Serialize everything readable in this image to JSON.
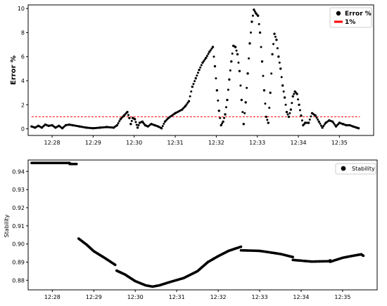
{
  "chart_data": [
    {
      "type": "scatter",
      "title": "",
      "xlabel": "",
      "ylabel": "Error %",
      "x_ticks": [
        "12:28",
        "12:29",
        "12:30",
        "12:31",
        "12:32",
        "12:33",
        "12:34",
        "12:35"
      ],
      "y_ticks": [
        "0",
        "2",
        "4",
        "6",
        "8",
        "10"
      ],
      "xlim": [
        "12:27:25",
        "12:35:50"
      ],
      "ylim": [
        -0.55,
        10.3
      ],
      "grid": false,
      "legend": "top-right",
      "colors": {
        "error": "#000000",
        "threshold": "#ff0000"
      },
      "series": [
        {
          "name": "Error %",
          "style": "dots",
          "points": [
            [
              "12:27:30",
              0.2
            ],
            [
              "12:27:35",
              0.1
            ],
            [
              "12:27:40",
              0.25
            ],
            [
              "12:27:45",
              0.1
            ],
            [
              "12:27:50",
              0.35
            ],
            [
              "12:27:55",
              0.25
            ],
            [
              "12:28:00",
              0.3
            ],
            [
              "12:28:05",
              0.1
            ],
            [
              "12:28:10",
              0.25
            ],
            [
              "12:28:15",
              0.05
            ],
            [
              "12:28:20",
              0.3
            ],
            [
              "12:28:25",
              0.35
            ],
            [
              "12:28:30",
              0.3
            ],
            [
              "12:28:40",
              0.2
            ],
            [
              "12:28:50",
              0.1
            ],
            [
              "12:29:00",
              0.05
            ],
            [
              "12:29:10",
              0.1
            ],
            [
              "12:29:20",
              0.15
            ],
            [
              "12:29:30",
              0.1
            ],
            [
              "12:29:35",
              0.3
            ],
            [
              "12:29:40",
              0.8
            ],
            [
              "12:29:45",
              1.1
            ],
            [
              "12:29:50",
              1.4
            ],
            [
              "12:29:53",
              0.9
            ],
            [
              "12:29:55",
              0.4
            ],
            [
              "12:29:58",
              0.9
            ],
            [
              "12:30:01",
              0.8
            ],
            [
              "12:30:05",
              0.1
            ],
            [
              "12:30:08",
              0.5
            ],
            [
              "12:30:12",
              0.6
            ],
            [
              "12:30:16",
              0.3
            ],
            [
              "12:30:20",
              0.2
            ],
            [
              "12:30:25",
              0.4
            ],
            [
              "12:30:30",
              0.3
            ],
            [
              "12:30:35",
              0.2
            ],
            [
              "12:30:40",
              0.05
            ],
            [
              "12:30:45",
              0.6
            ],
            [
              "12:30:50",
              0.9
            ],
            [
              "12:31:00",
              1.3
            ],
            [
              "12:31:10",
              1.6
            ],
            [
              "12:31:15",
              1.9
            ],
            [
              "12:31:20",
              2.3
            ],
            [
              "12:31:25",
              3.5
            ],
            [
              "12:31:30",
              4.2
            ],
            [
              "12:31:35",
              4.9
            ],
            [
              "12:31:40",
              5.5
            ],
            [
              "12:31:45",
              5.9
            ],
            [
              "12:31:50",
              6.4
            ],
            [
              "12:31:55",
              6.8
            ],
            [
              "12:31:58",
              5.2
            ],
            [
              "12:32:01",
              3.2
            ],
            [
              "12:32:04",
              1.5
            ],
            [
              "12:32:07",
              0.3
            ],
            [
              "12:32:10",
              0.6
            ],
            [
              "12:32:13",
              1.2
            ],
            [
              "12:32:16",
              2.4
            ],
            [
              "12:32:19",
              4.1
            ],
            [
              "12:32:22",
              5.6
            ],
            [
              "12:32:25",
              6.9
            ],
            [
              "12:32:28",
              6.8
            ],
            [
              "12:32:31",
              6.2
            ],
            [
              "12:32:34",
              4.8
            ],
            [
              "12:32:37",
              2.4
            ],
            [
              "12:32:40",
              0.4
            ],
            [
              "12:32:43",
              2.2
            ],
            [
              "12:32:46",
              4.6
            ],
            [
              "12:32:49",
              7.1
            ],
            [
              "12:32:52",
              8.9
            ],
            [
              "12:32:55",
              9.9
            ],
            [
              "12:32:58",
              9.6
            ],
            [
              "12:33:01",
              9.4
            ],
            [
              "12:33:04",
              8.0
            ],
            [
              "12:33:07",
              5.6
            ],
            [
              "12:33:10",
              3.2
            ],
            [
              "12:33:13",
              1.0
            ],
            [
              "12:33:16",
              0.5
            ],
            [
              "12:33:19",
              3.0
            ],
            [
              "12:33:22",
              6.2
            ],
            [
              "12:33:25",
              7.9
            ],
            [
              "12:33:28",
              7.4
            ],
            [
              "12:33:31",
              6.0
            ],
            [
              "12:33:34",
              5.0
            ],
            [
              "12:33:37",
              3.6
            ],
            [
              "12:33:40",
              2.6
            ],
            [
              "12:33:43",
              1.4
            ],
            [
              "12:33:46",
              1.0
            ],
            [
              "12:33:49",
              1.6
            ],
            [
              "12:33:52",
              2.7
            ],
            [
              "12:33:55",
              3.1
            ],
            [
              "12:33:58",
              2.9
            ],
            [
              "12:34:01",
              2.0
            ],
            [
              "12:34:04",
              1.1
            ],
            [
              "12:34:07",
              0.3
            ],
            [
              "12:34:10",
              0.5
            ],
            [
              "12:34:15",
              0.5
            ],
            [
              "12:34:20",
              1.3
            ],
            [
              "12:34:25",
              1.1
            ],
            [
              "12:34:30",
              0.6
            ],
            [
              "12:34:35",
              0.1
            ],
            [
              "12:34:40",
              0.5
            ],
            [
              "12:34:45",
              0.7
            ],
            [
              "12:34:50",
              0.6
            ],
            [
              "12:34:55",
              0.2
            ],
            [
              "12:35:00",
              0.5
            ],
            [
              "12:35:05",
              0.4
            ],
            [
              "12:35:10",
              0.3
            ],
            [
              "12:35:15",
              0.3
            ],
            [
              "12:35:20",
              0.2
            ],
            [
              "12:35:25",
              0.1
            ],
            [
              "12:35:28",
              0.05
            ]
          ]
        },
        {
          "name": "1%",
          "style": "dashed-line",
          "value": 1.0
        }
      ]
    },
    {
      "type": "scatter",
      "title": "",
      "xlabel": "",
      "ylabel": "Stability",
      "x_ticks": [
        "12:28",
        "12:29",
        "12:30",
        "12:31",
        "12:32",
        "12:33",
        "12:34",
        "12:35"
      ],
      "y_ticks": [
        "0.88",
        "0.89",
        "0.90",
        "0.91",
        "0.92",
        "0.93",
        "0.94"
      ],
      "xlim": [
        "12:27:25",
        "12:35:50"
      ],
      "ylim": [
        0.8747,
        0.9463
      ],
      "grid": false,
      "legend": "top-right",
      "colors": {
        "stability": "#000000"
      },
      "series": [
        {
          "name": "Stability",
          "style": "dots",
          "segments": [
            [
              [
                "12:27:30",
                0.9447
              ],
              [
                "12:28:25",
                0.9447
              ]
            ],
            [
              [
                "12:28:25",
                0.9441
              ],
              [
                "12:28:35",
                0.9441
              ]
            ],
            [
              [
                "12:28:38",
                0.903
              ],
              [
                "12:28:50",
                0.8995
              ],
              [
                "12:29:00",
                0.896
              ],
              [
                "12:29:15",
                0.8925
              ],
              [
                "12:29:25",
                0.89
              ],
              [
                "12:29:31",
                0.8885
              ]
            ],
            [
              [
                "12:29:33",
                0.8853
              ],
              [
                "12:29:45",
                0.8832
              ],
              [
                "12:30:00",
                0.8795
              ],
              [
                "12:30:15",
                0.8772
              ],
              [
                "12:30:25",
                0.8765
              ],
              [
                "12:30:35",
                0.8772
              ],
              [
                "12:30:50",
                0.879
              ],
              [
                "12:31:10",
                0.8812
              ],
              [
                "12:31:30",
                0.885
              ],
              [
                "12:31:45",
                0.89
              ],
              [
                "12:32:00",
                0.8933
              ],
              [
                "12:32:15",
                0.8962
              ],
              [
                "12:32:33",
                0.8985
              ]
            ],
            [
              [
                "12:32:33",
                0.8965
              ],
              [
                "12:33:00",
                0.8962
              ],
              [
                "12:33:30",
                0.8945
              ],
              [
                "12:33:48",
                0.8928
              ]
            ],
            [
              [
                "12:33:48",
                0.8912
              ],
              [
                "12:34:15",
                0.8903
              ],
              [
                "12:34:40",
                0.8905
              ],
              [
                "12:34:42",
                0.891
              ]
            ],
            [
              [
                "12:34:42",
                0.8902
              ],
              [
                "12:35:00",
                0.8924
              ],
              [
                "12:35:15",
                0.8935
              ],
              [
                "12:35:27",
                0.8943
              ],
              [
                "12:35:30",
                0.8935
              ]
            ]
          ]
        }
      ]
    }
  ]
}
